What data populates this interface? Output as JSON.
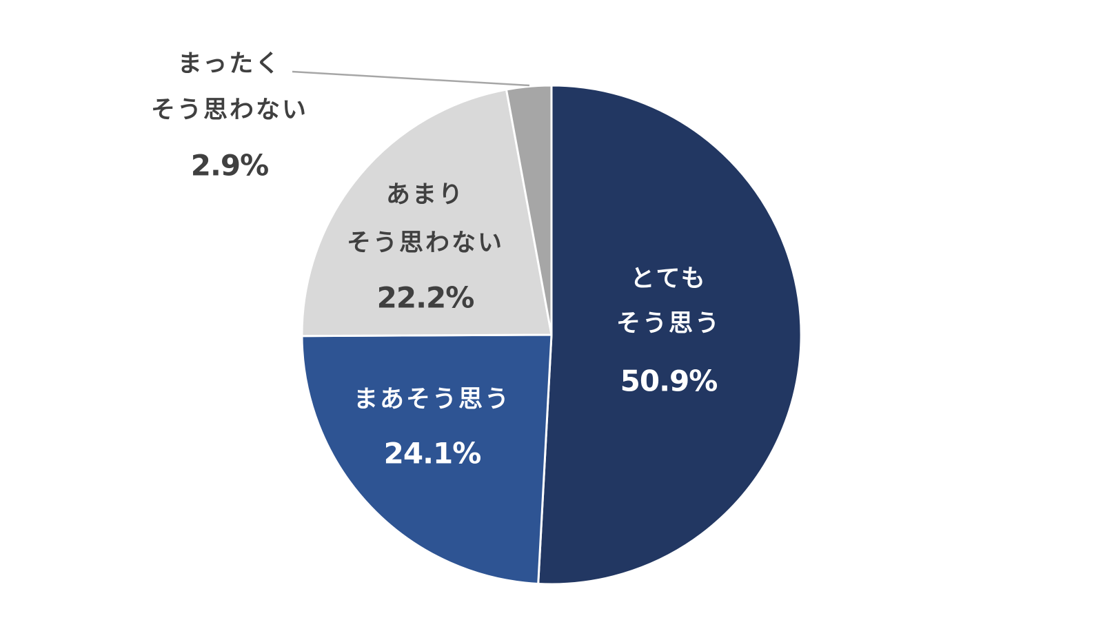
{
  "chart_data": {
    "type": "pie",
    "start_angle_deg": 0,
    "direction": "clockwise",
    "slices": [
      {
        "label_lines": [
          "とても",
          "そう思う"
        ],
        "value": 50.9,
        "value_label": "50.9%",
        "color": "#223762",
        "text_color": "#ffffff"
      },
      {
        "label_lines": [
          "まあそう思う"
        ],
        "value": 24.1,
        "value_label": "24.1%",
        "color": "#2e5493",
        "text_color": "#ffffff"
      },
      {
        "label_lines": [
          "あまり",
          "そう思わない"
        ],
        "value": 22.2,
        "value_label": "22.2%",
        "color": "#d9d9d9",
        "text_color": "#404040"
      },
      {
        "label_lines": [
          "まったく",
          "そう思わない"
        ],
        "value": 2.9,
        "value_label": "2.9%",
        "color": "#a6a6a6",
        "text_color": "#404040",
        "label_outside": true
      }
    ],
    "leader_line_color": "#a6a6a6",
    "slice_border_color": "#ffffff"
  }
}
